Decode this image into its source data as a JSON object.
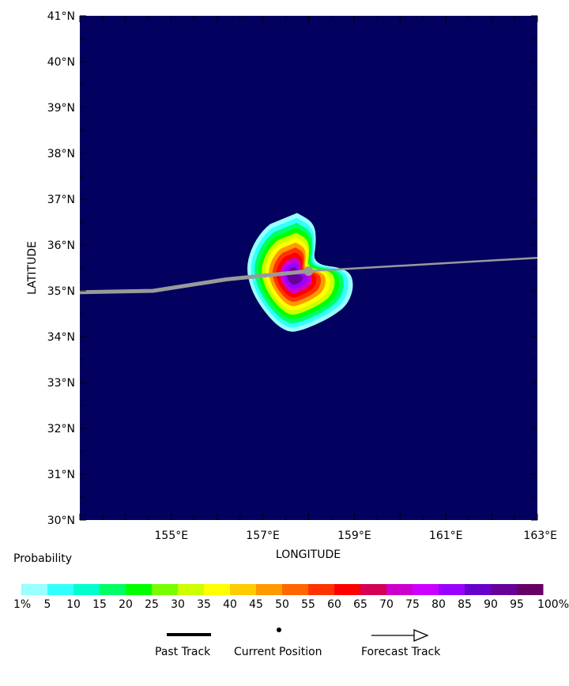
{
  "map": {
    "x_axis_label": "LONGITUDE",
    "y_axis_label": "LATITUDE",
    "lon_range": [
      153,
      163
    ],
    "lat_range": [
      30,
      41
    ],
    "lat_ticks": [
      {
        "value": 30,
        "label": "30°N"
      },
      {
        "value": 31,
        "label": "31°N"
      },
      {
        "value": 32,
        "label": "32°N"
      },
      {
        "value": 33,
        "label": "33°N"
      },
      {
        "value": 34,
        "label": "34°N"
      },
      {
        "value": 35,
        "label": "35°N"
      },
      {
        "value": 36,
        "label": "36°N"
      },
      {
        "value": 37,
        "label": "37°N"
      },
      {
        "value": 38,
        "label": "38°N"
      },
      {
        "value": 39,
        "label": "39°N"
      },
      {
        "value": 40,
        "label": "40°N"
      },
      {
        "value": 41,
        "label": "41°N"
      }
    ],
    "lon_ticks": [
      {
        "value": 155,
        "label": "155°E"
      },
      {
        "value": 157,
        "label": "157°E"
      },
      {
        "value": 159,
        "label": "159°E"
      },
      {
        "value": 161,
        "label": "161°E"
      },
      {
        "value": 163,
        "label": "163°E"
      }
    ],
    "background_color": "#02015f",
    "past_track": [
      [
        153.0,
        34.97
      ],
      [
        154.6,
        35.0
      ],
      [
        156.2,
        35.25
      ],
      [
        158.0,
        35.43
      ]
    ],
    "forecast_track": [
      [
        158.0,
        35.43
      ],
      [
        163.0,
        35.72
      ]
    ],
    "current_position": [
      158.0,
      35.43
    ],
    "track_color": "#9a9a9a"
  },
  "legend": {
    "title": "Probability",
    "colors": [
      "#99ffff",
      "#33ffff",
      "#00ffcc",
      "#00ff66",
      "#00ff00",
      "#77ff00",
      "#ccff00",
      "#ffff00",
      "#ffcc00",
      "#ff9900",
      "#ff6600",
      "#ff3300",
      "#ff0000",
      "#d40055",
      "#cc00cc",
      "#cc00ff",
      "#9900ff",
      "#6600cc",
      "#660099",
      "#660066"
    ],
    "labels": [
      "1%",
      "5",
      "10",
      "15",
      "20",
      "25",
      "30",
      "35",
      "40",
      "45",
      "50",
      "55",
      "60",
      "65",
      "70",
      "75",
      "80",
      "85",
      "90",
      "95",
      "100%"
    ],
    "keys": {
      "past_track": "Past Track",
      "current_position": "Current Position",
      "forecast_track": "Forecast Track"
    }
  }
}
